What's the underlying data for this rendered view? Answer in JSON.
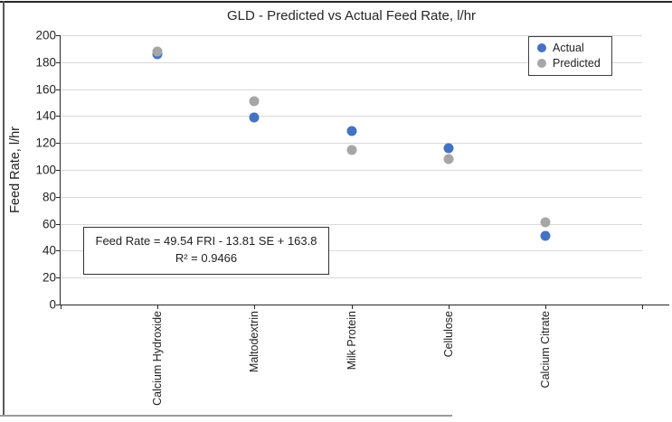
{
  "chart_data": {
    "type": "scatter",
    "title": "GLD - Predicted vs Actual Feed Rate, l/hr",
    "ylabel": "Feed Rate, l/hr",
    "ylim": [
      0,
      200
    ],
    "ytick_step": 20,
    "grid": true,
    "legend_position": "top-right",
    "categories": [
      "Calcium Hydroxide",
      "Maltodextrin",
      "Milk Protein",
      "Cellulose",
      "Calcium Citrate"
    ],
    "series": [
      {
        "name": "Actual",
        "color": "#4472C4",
        "values": [
          186,
          139,
          129,
          116,
          51
        ]
      },
      {
        "name": "Predicted",
        "color": "#A6A6A6",
        "values": [
          188,
          151,
          115,
          108,
          61
        ]
      }
    ],
    "annotation": {
      "equation": "Feed Rate = 49.54 FRI - 13.81 SE + 163.8",
      "r_squared": "R² = 0.9466"
    }
  }
}
